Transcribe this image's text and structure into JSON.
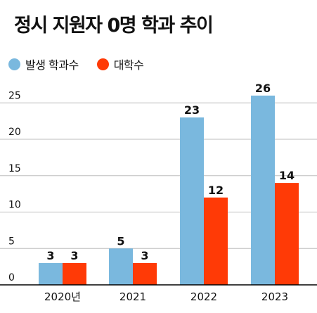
{
  "title": "정시 지원자 0명 학과 추이",
  "colors": {
    "series_1": "#7ab8de",
    "series_2": "#ff3a06",
    "grid": "#bdbdbd",
    "axis": "#000000"
  },
  "chart_data": {
    "type": "bar",
    "title": "정시 지원자 0명 학과 추이",
    "categories": [
      "2020년",
      "2021",
      "2022",
      "2023"
    ],
    "series": [
      {
        "name": "발생 학과수",
        "values": [
          3,
          5,
          23,
          26
        ]
      },
      {
        "name": "대학수",
        "values": [
          3,
          3,
          12,
          14
        ]
      }
    ],
    "y_ticks": [
      "0",
      "5",
      "10",
      "15",
      "20",
      "25"
    ],
    "ylim": [
      0,
      28
    ],
    "grid": true,
    "legend_position": "top-left",
    "data_labels": true
  }
}
